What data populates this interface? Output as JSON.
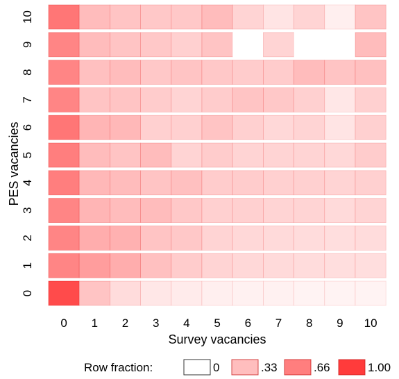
{
  "chart_data": {
    "type": "heatmap",
    "xlabel": "Survey vacancies",
    "ylabel": "PES vacancies",
    "x_categories": [
      "0",
      "1",
      "2",
      "3",
      "4",
      "5",
      "6",
      "7",
      "8",
      "9",
      "10"
    ],
    "y_categories": [
      "0",
      "1",
      "2",
      "3",
      "4",
      "5",
      "6",
      "7",
      "8",
      "9",
      "10"
    ],
    "value_label": "Row fraction",
    "color_low": "#ffffff",
    "color_high": "#ff3b3b",
    "rows": [
      {
        "y": "0",
        "values": [
          0.92,
          0.3,
          0.18,
          0.12,
          0.1,
          0.08,
          0.07,
          0.07,
          0.06,
          0.06,
          0.06
        ]
      },
      {
        "y": "1",
        "values": [
          0.62,
          0.5,
          0.42,
          0.32,
          0.26,
          0.22,
          0.2,
          0.19,
          0.18,
          0.17,
          0.17
        ]
      },
      {
        "y": "2",
        "values": [
          0.62,
          0.42,
          0.4,
          0.3,
          0.28,
          0.22,
          0.2,
          0.19,
          0.18,
          0.17,
          0.18
        ]
      },
      {
        "y": "3",
        "values": [
          0.62,
          0.38,
          0.34,
          0.34,
          0.28,
          0.24,
          0.24,
          0.22,
          0.22,
          0.19,
          0.22
        ]
      },
      {
        "y": "4",
        "values": [
          0.66,
          0.36,
          0.34,
          0.3,
          0.32,
          0.26,
          0.26,
          0.24,
          0.24,
          0.22,
          0.24
        ]
      },
      {
        "y": "5",
        "values": [
          0.66,
          0.34,
          0.3,
          0.34,
          0.22,
          0.26,
          0.22,
          0.22,
          0.22,
          0.2,
          0.26
        ]
      },
      {
        "y": "6",
        "values": [
          0.7,
          0.38,
          0.36,
          0.24,
          0.24,
          0.3,
          0.24,
          0.2,
          0.22,
          0.14,
          0.24
        ]
      },
      {
        "y": "7",
        "values": [
          0.62,
          0.3,
          0.3,
          0.26,
          0.22,
          0.26,
          0.3,
          0.28,
          0.24,
          0.12,
          0.24
        ]
      },
      {
        "y": "8",
        "values": [
          0.62,
          0.32,
          0.34,
          0.28,
          0.3,
          0.28,
          0.26,
          0.26,
          0.34,
          0.3,
          0.32
        ]
      },
      {
        "y": "9",
        "values": [
          0.62,
          0.34,
          0.3,
          0.28,
          0.24,
          0.3,
          0.0,
          0.22,
          0.0,
          0.0,
          0.34
        ]
      },
      {
        "y": "10",
        "values": [
          0.7,
          0.34,
          0.3,
          0.28,
          0.28,
          0.34,
          0.22,
          0.14,
          0.22,
          0.08,
          0.3
        ]
      }
    ],
    "legend": {
      "title": "Row fraction:",
      "items": [
        {
          "label": "0",
          "value": 0.0
        },
        {
          "label": ".33",
          "value": 0.33
        },
        {
          "label": ".66",
          "value": 0.66
        },
        {
          "label": "1.00",
          "value": 1.0
        }
      ],
      "placement": "bottom"
    },
    "grid": false
  }
}
